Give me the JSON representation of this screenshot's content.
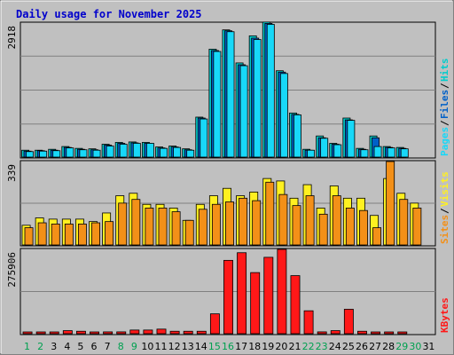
{
  "chart_data": {
    "type": "bar",
    "title": "Daily usage for November 2025",
    "colors": {
      "background": "#c0c0c0",
      "title": "#0000cc",
      "hits": "#00cccc",
      "files": "#0060c8",
      "pages": "#18d8f8",
      "visits": "#fff020",
      "sites": "#f39018",
      "kbytes": "#ff1818",
      "weekday_label": "#000000",
      "weekend_label": "#00a050"
    },
    "days": [
      "1",
      "2",
      "3",
      "4",
      "5",
      "6",
      "7",
      "8",
      "9",
      "10",
      "11",
      "12",
      "13",
      "14",
      "15",
      "16",
      "17",
      "18",
      "19",
      "20",
      "21",
      "22",
      "23",
      "24",
      "25",
      "26",
      "27",
      "28",
      "29",
      "30",
      "31"
    ],
    "weekend_days": [
      "1",
      "2",
      "8",
      "9",
      "15",
      "16",
      "22",
      "23",
      "29",
      "30"
    ],
    "panels": [
      {
        "id": "hits-files-pages",
        "max_label": "2918",
        "max": 2918,
        "legend": [
          {
            "name": "Pages",
            "color": "#18d8f8"
          },
          {
            "name": "Files",
            "color": "#0060c8"
          },
          {
            "name": "Hits",
            "color": "#00cccc"
          }
        ],
        "series": [
          {
            "name": "Hits",
            "values": [
              150,
              150,
              170,
              230,
              190,
              180,
              280,
              320,
              330,
              320,
              220,
              240,
              180,
              870,
              2350,
              2770,
              2050,
              2640,
              2940,
              1880,
              960,
              170,
              460,
              300,
              850,
              190,
              460,
              230,
              210,
              0,
              0
            ]
          },
          {
            "name": "Files",
            "values": [
              130,
              140,
              150,
              210,
              170,
              160,
              260,
              300,
              310,
              300,
              200,
              220,
              160,
              850,
              2320,
              2750,
              2010,
              2590,
              2910,
              1850,
              930,
              150,
              420,
              280,
              810,
              170,
              420,
              210,
              190,
              0,
              0
            ]
          },
          {
            "name": "Pages",
            "values": [
              120,
              130,
              140,
              200,
              160,
              150,
              240,
              280,
              300,
              300,
              190,
              210,
              150,
              830,
              2300,
              2730,
              1990,
              2560,
              2890,
              1820,
              920,
              150,
              410,
              270,
              800,
              160,
              230,
              200,
              180,
              0,
              0
            ]
          }
        ]
      },
      {
        "id": "visits-sites",
        "max_label": "339",
        "max": 339,
        "legend": [
          {
            "name": "Sites",
            "color": "#f39018"
          },
          {
            "name": "Visits",
            "color": "#fff020"
          }
        ],
        "series": [
          {
            "name": "Visits",
            "values": [
              80,
              110,
              105,
              105,
              105,
              95,
              130,
              200,
              210,
              165,
              165,
              150,
              100,
              165,
              200,
              230,
              200,
              215,
              270,
              260,
              190,
              245,
              150,
              240,
              190,
              190,
              120,
              270,
              210,
              170,
              0
            ]
          },
          {
            "name": "Sites",
            "values": [
              70,
              90,
              85,
              85,
              85,
              90,
              95,
              170,
              185,
              150,
              150,
              135,
              100,
              145,
              165,
              175,
              190,
              180,
              255,
              205,
              160,
              200,
              125,
              200,
              150,
              140,
              70,
              339,
              185,
              150,
              0
            ]
          }
        ]
      },
      {
        "id": "kbytes",
        "max_label": "275906",
        "max": 275906,
        "legend": [
          {
            "name": "KBytes",
            "color": "#ff1818"
          }
        ],
        "series": [
          {
            "name": "KBytes",
            "values": [
              2500,
              2500,
              2500,
              10000,
              8000,
              5000,
              6000,
              6000,
              12000,
              12000,
              15000,
              8000,
              8000,
              8000,
              65000,
              240000,
              265000,
              200000,
              250000,
              275906,
              190000,
              75000,
              6000,
              10000,
              80000,
              8000,
              5000,
              5000,
              5000,
              0,
              0
            ]
          }
        ]
      }
    ]
  }
}
